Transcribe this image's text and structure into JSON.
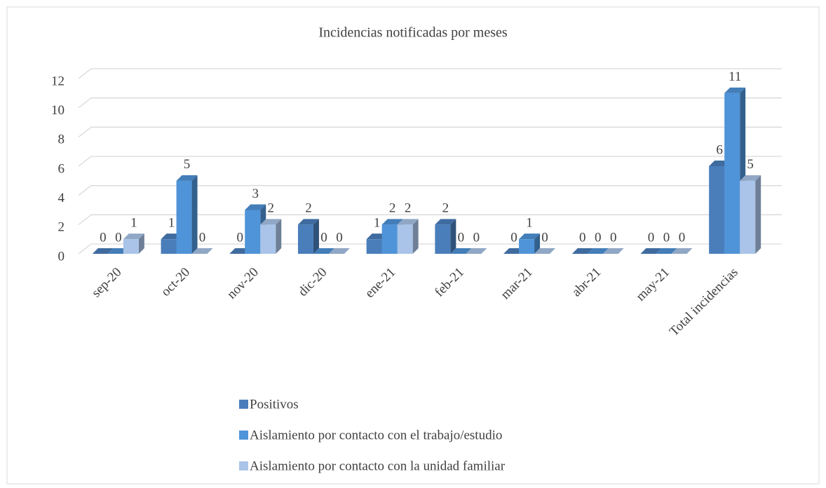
{
  "chart_data": {
    "type": "bar3d",
    "title": "Incidencias notificadas por meses",
    "categories": [
      "sep-20",
      "oct-20",
      "nov-20",
      "dic-20",
      "ene-21",
      "feb-21",
      "mar-21",
      "abr-21",
      "may-21",
      "Total incidencias"
    ],
    "series": [
      {
        "name": "Positivos",
        "color": "#4a7ebb",
        "values": [
          0,
          1,
          0,
          2,
          1,
          2,
          0,
          0,
          0,
          6
        ]
      },
      {
        "name": "Aislamiento por contacto con el trabajo/estudio",
        "color": "#4f94d9",
        "values": [
          0,
          5,
          3,
          0,
          2,
          0,
          1,
          0,
          0,
          11
        ]
      },
      {
        "name": "Aislamiento por contacto con la unidad familiar",
        "color": "#a9c4e8",
        "values": [
          1,
          0,
          2,
          0,
          2,
          0,
          0,
          0,
          0,
          5
        ]
      }
    ],
    "ylim": [
      0,
      12
    ],
    "yticks": [
      0,
      2,
      4,
      6,
      8,
      10,
      12
    ],
    "grid": true,
    "legend": "bottom"
  }
}
